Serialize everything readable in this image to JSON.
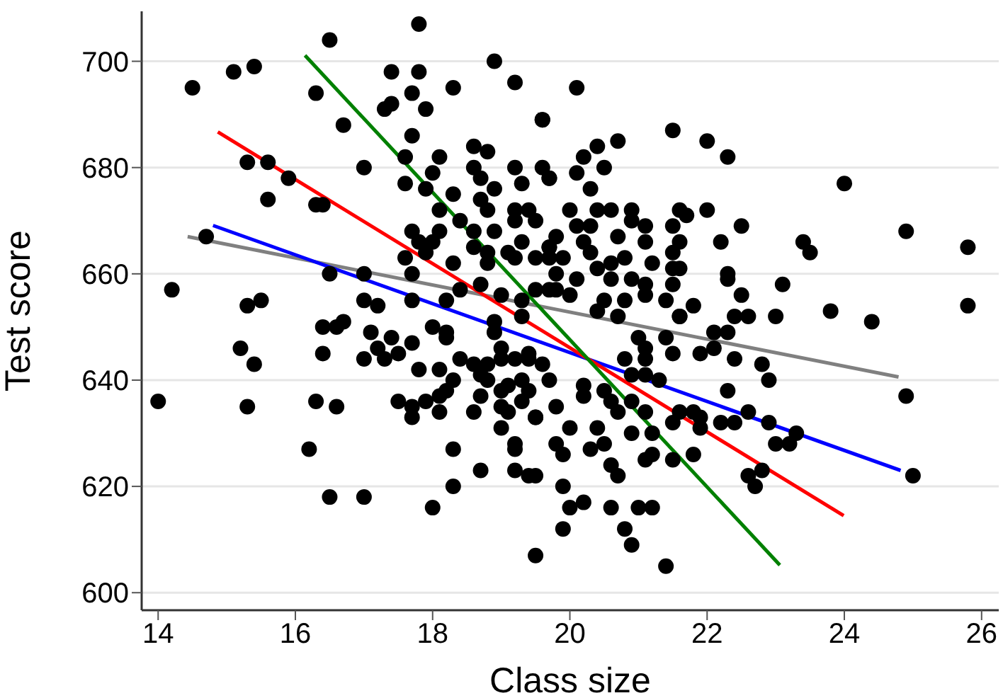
{
  "chart_data": {
    "type": "scatter",
    "xlabel": "Class size",
    "ylabel": "Test score",
    "xlim": [
      13.76,
      26.25
    ],
    "ylim": [
      596.7,
      709.4
    ],
    "xticks": [
      14,
      16,
      18,
      20,
      22,
      24,
      26
    ],
    "yticks": [
      600,
      620,
      640,
      660,
      680,
      700
    ],
    "grid": "y",
    "marker": "circle",
    "series": [
      {
        "color": "#000000",
        "x": [
          14.0,
          14.2,
          14.5,
          14.7,
          15.1,
          15.4,
          15.3,
          15.6,
          15.9,
          15.6,
          16.3,
          16.5,
          16.7,
          16.3,
          16.4,
          17.0,
          17.4,
          17.8,
          17.8,
          17.7,
          17.3,
          17.4,
          17.9,
          18.3,
          18.9,
          19.2,
          19.6,
          17.7,
          17.6,
          18.1,
          18.6,
          18.8,
          18.6,
          19.2,
          18.0,
          17.6,
          17.9,
          18.3,
          18.7,
          18.9,
          19.3,
          19.6,
          19.7,
          18.1,
          18.7,
          18.8,
          19.2,
          19.4,
          17.7,
          18.1,
          18.4,
          18.6,
          18.9,
          19.2,
          19.5,
          17.8,
          18.0,
          18.6,
          18.8,
          19.1,
          19.3,
          19.7,
          17.6,
          17.9,
          18.3,
          18.8,
          19.2,
          19.5,
          17.7,
          16.5,
          17.0,
          15.3,
          15.5,
          17.0,
          17.2,
          17.7,
          18.2,
          18.4,
          18.7,
          19.0,
          19.3,
          19.7,
          20.1,
          19.6,
          21.5,
          22.0,
          22.3,
          20.4,
          20.2,
          20.7,
          20.5,
          20.1,
          20.3,
          19.7,
          24.0,
          24.9,
          25.8,
          20.0,
          20.4,
          20.6,
          20.9,
          21.6,
          21.7,
          22.0,
          22.5,
          21.5,
          21.1,
          20.9,
          20.3,
          20.1,
          19.8,
          20.7,
          22.2,
          23.4,
          23.5,
          21.6,
          21.1,
          20.2,
          19.7,
          21.5,
          20.3,
          19.9,
          20.8,
          21.2,
          19.7,
          21.5,
          21.6,
          22.3,
          22.3,
          20.6,
          20.4,
          19.8,
          20.1,
          20.6,
          20.9,
          21.1,
          23.1,
          21.5,
          19.5,
          19.8,
          20.0,
          21.1,
          22.5,
          20.5,
          20.8,
          21.4,
          21.8,
          23.8,
          25.8,
          20.4,
          21.6,
          22.4,
          22.6,
          23.0,
          24.4,
          20.7,
          21.6,
          22.1,
          22.3,
          21.0,
          21.1,
          21.4,
          21.5,
          21.9,
          22.1,
          22.4,
          22.8,
          22.9,
          20.8,
          21.1,
          20.9,
          21.1,
          21.3,
          22.3,
          24.9,
          20.2,
          20.5,
          20.2,
          20.6,
          20.7,
          20.9,
          21.1,
          21.6,
          21.8,
          21.9,
          22.2,
          22.4,
          22.6,
          22.9,
          21.5,
          21.9,
          23.0,
          23.2,
          23.3,
          20.0,
          20.4,
          19.8,
          19.5,
          20.9,
          21.2,
          19.8,
          19.9,
          20.3,
          20.5,
          20.6,
          20.7,
          21.1,
          21.2,
          21.5,
          21.8,
          22.8,
          22.6,
          22.7,
          25.0,
          19.9,
          19.5,
          20.0,
          20.2,
          20.6,
          21.0,
          21.2,
          19.9,
          20.8,
          20.9,
          19.5,
          21.4,
          15.2,
          15.4,
          15.3,
          16.3,
          16.6,
          16.2,
          16.5,
          17.0,
          16.4,
          16.6,
          16.7,
          16.4,
          17.1,
          17.4,
          17.0,
          17.2,
          17.3,
          17.5,
          17.7,
          17.8,
          18.1,
          17.5,
          17.7,
          17.7,
          17.9,
          18.1,
          18.1,
          18.2,
          18.3,
          18.4,
          18.6,
          18.8,
          18.7,
          18.8,
          18.7,
          18.6,
          19.0,
          19.1,
          19.5,
          19.0,
          19.2,
          19.2,
          18.3,
          18.7,
          19.2,
          19.4,
          18.3,
          18.0,
          19.0,
          19.2,
          19.0,
          19.4,
          19.6,
          19.7,
          19.3,
          19.4,
          19.1,
          19.0,
          19.3,
          18.0,
          18.2,
          18.2,
          18.9,
          18.9,
          19.3,
          19.4
        ],
        "values": [
          636,
          657,
          695,
          667,
          698,
          699,
          681,
          681,
          678,
          674,
          694,
          704,
          688,
          673,
          673,
          680,
          698,
          698,
          707,
          694,
          691,
          692,
          691,
          695,
          700,
          696,
          689,
          686,
          682,
          682,
          684,
          683,
          680,
          680,
          679,
          677,
          676,
          675,
          678,
          676,
          677,
          680,
          678,
          672,
          674,
          672,
          672,
          672,
          668,
          668,
          670,
          668,
          668,
          670,
          670,
          666,
          666,
          665,
          664,
          664,
          666,
          665,
          663,
          664,
          662,
          662,
          663,
          663,
          660,
          660,
          660,
          654,
          655,
          655,
          654,
          655,
          655,
          657,
          658,
          656,
          655,
          657,
          695,
          689,
          687,
          685,
          682,
          684,
          682,
          685,
          680,
          679,
          676,
          678,
          677,
          668,
          665,
          672,
          672,
          672,
          672,
          672,
          671,
          672,
          669,
          669,
          669,
          670,
          669,
          669,
          667,
          667,
          666,
          666,
          664,
          666,
          666,
          666,
          665,
          664,
          664,
          663,
          663,
          662,
          663,
          661,
          661,
          660,
          659,
          662,
          661,
          660,
          659,
          659,
          659,
          658,
          658,
          658,
          657,
          657,
          656,
          656,
          656,
          655,
          655,
          655,
          654,
          653,
          654,
          653,
          652,
          652,
          652,
          652,
          651,
          652,
          652,
          649,
          649,
          648,
          646,
          648,
          645,
          645,
          646,
          644,
          643,
          640,
          644,
          644,
          641,
          641,
          640,
          638,
          637,
          639,
          638,
          637,
          636,
          634,
          636,
          634,
          634,
          634,
          633,
          632,
          632,
          634,
          632,
          632,
          631,
          628,
          628,
          630,
          631,
          631,
          635,
          633,
          630,
          630,
          628,
          626,
          627,
          628,
          624,
          622,
          625,
          626,
          625,
          626,
          623,
          622,
          620,
          622,
          620,
          622,
          616,
          617,
          616,
          616,
          616,
          612,
          612,
          609,
          607,
          605,
          646,
          643,
          635,
          636,
          635,
          627,
          618,
          618,
          650,
          650,
          651,
          645,
          649,
          648,
          644,
          646,
          644,
          645,
          647,
          642,
          642,
          636,
          635,
          633,
          636,
          634,
          637,
          638,
          640,
          644,
          643,
          643,
          641,
          640,
          637,
          634,
          635,
          634,
          633,
          631,
          628,
          627,
          627,
          623,
          623,
          622,
          620,
          616,
          646,
          644,
          644,
          644,
          643,
          640,
          640,
          638,
          639,
          638,
          636,
          650,
          649,
          648,
          651,
          649,
          652,
          645
        ]
      },
      {
        "type": "line",
        "color": "#808080",
        "marker": "none",
        "x": [
          14.43,
          24.79
        ],
        "values": [
          667.0,
          640.6
        ]
      },
      {
        "type": "line",
        "color": "#0000ff",
        "marker": "none",
        "x": [
          14.8,
          24.82
        ],
        "values": [
          669.1,
          623.0
        ]
      },
      {
        "type": "line",
        "color": "#ff0000",
        "marker": "none",
        "x": [
          14.87,
          23.99
        ],
        "values": [
          686.7,
          614.5
        ]
      },
      {
        "type": "line",
        "color": "#008000",
        "marker": "none",
        "x": [
          16.14,
          23.06
        ],
        "values": [
          701.1,
          605.2
        ]
      }
    ]
  }
}
